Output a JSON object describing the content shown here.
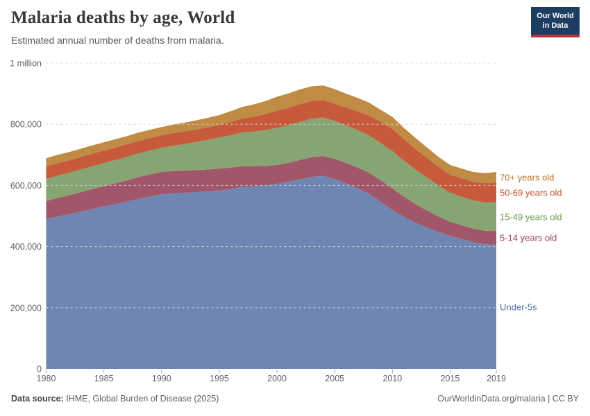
{
  "header": {
    "title": "Malaria deaths by age, World",
    "subtitle": "Estimated annual number of deaths from malaria."
  },
  "logo": {
    "line1": "Our World",
    "line2": "in Data",
    "bg_color": "#1d3d63",
    "bar_color": "#bf3036"
  },
  "footer": {
    "source_label": "Data source:",
    "source_text": " IHME, Global Burden of Disease (2025)",
    "right": "OurWorldinData.org/malaria | CC BY"
  },
  "chart_data": {
    "type": "area",
    "stacked": true,
    "title": "Malaria deaths by age, World",
    "xlabel": "",
    "ylabel": "",
    "ylim": [
      0,
      1000000
    ],
    "grid": "dashed",
    "legend_position": "right",
    "x": [
      1980,
      1981,
      1982,
      1983,
      1984,
      1985,
      1986,
      1987,
      1988,
      1989,
      1990,
      1991,
      1992,
      1993,
      1994,
      1995,
      1996,
      1997,
      1998,
      1999,
      2000,
      2001,
      2002,
      2003,
      2004,
      2005,
      2006,
      2007,
      2008,
      2009,
      2010,
      2011,
      2012,
      2013,
      2014,
      2015,
      2016,
      2017,
      2018,
      2019
    ],
    "x_ticks": [
      1980,
      1985,
      1990,
      1995,
      2000,
      2005,
      2010,
      2015,
      2019
    ],
    "y_ticks": {
      "values": [
        0,
        200000,
        400000,
        600000,
        800000,
        1000000
      ],
      "labels": [
        "0",
        "200,000",
        "400,000",
        "600,000",
        "800,000",
        "1 million"
      ]
    },
    "series": [
      {
        "name": "Under-5s",
        "color": "#6f86b3",
        "label_color": "#4d72a7",
        "values": [
          490000,
          498000,
          506000,
          514000,
          523000,
          531000,
          539000,
          547000,
          556000,
          564000,
          571000,
          574000,
          576000,
          578000,
          580000,
          583000,
          588000,
          595000,
          597000,
          600000,
          605000,
          612000,
          620000,
          628000,
          631000,
          621000,
          606000,
          590000,
          572000,
          546000,
          519000,
          497000,
          478000,
          462000,
          448000,
          435000,
          425000,
          415000,
          408000,
          406000
        ]
      },
      {
        "name": "5-14 years old",
        "color": "#a2566a",
        "label_color": "#9c4257",
        "values": [
          59000,
          61000,
          62000,
          64000,
          65000,
          66000,
          68000,
          69000,
          71000,
          72000,
          73000,
          73000,
          72000,
          72000,
          72000,
          72000,
          70000,
          68000,
          66000,
          64000,
          62000,
          62000,
          63000,
          64000,
          65000,
          66000,
          67000,
          68000,
          69000,
          70000,
          71000,
          66000,
          61000,
          56000,
          50000,
          46000,
          45000,
          44000,
          44000,
          45000
        ]
      },
      {
        "name": "15-49 years old",
        "color": "#87a573",
        "label_color": "#699c50",
        "values": [
          72000,
          73000,
          73000,
          74000,
          75000,
          76000,
          76000,
          77000,
          78000,
          78000,
          79000,
          83000,
          87000,
          92000,
          97000,
          102000,
          106000,
          110000,
          113000,
          117000,
          121000,
          123000,
          125000,
          126000,
          126000,
          124000,
          123000,
          123000,
          122000,
          122000,
          122000,
          118000,
          113000,
          108000,
          101000,
          95000,
          93000,
          92000,
          92000,
          93000
        ]
      },
      {
        "name": "50-69 years old",
        "color": "#c75a3a",
        "label_color": "#c44e29",
        "values": [
          41000,
          41000,
          41000,
          41000,
          41000,
          41000,
          41000,
          41000,
          41000,
          41000,
          41000,
          41000,
          41000,
          41000,
          41000,
          41000,
          44000,
          46000,
          49000,
          52000,
          56000,
          57000,
          58000,
          58000,
          57000,
          56000,
          58000,
          61000,
          65000,
          69000,
          73000,
          70000,
          67000,
          64000,
          61000,
          59000,
          60000,
          61000,
          63000,
          66000
        ]
      },
      {
        "name": "70+ years old",
        "color": "#c08b44",
        "label_color": "#bc7026",
        "values": [
          27000,
          27000,
          27000,
          27000,
          27000,
          27000,
          27000,
          27000,
          27000,
          27000,
          27000,
          28000,
          29000,
          30000,
          31000,
          32000,
          35000,
          38000,
          40000,
          43000,
          46000,
          47000,
          48000,
          48000,
          48000,
          48000,
          46000,
          44000,
          42000,
          40000,
          39000,
          37000,
          36000,
          34000,
          33000,
          32000,
          32000,
          32000,
          33000,
          34000
        ]
      }
    ]
  }
}
